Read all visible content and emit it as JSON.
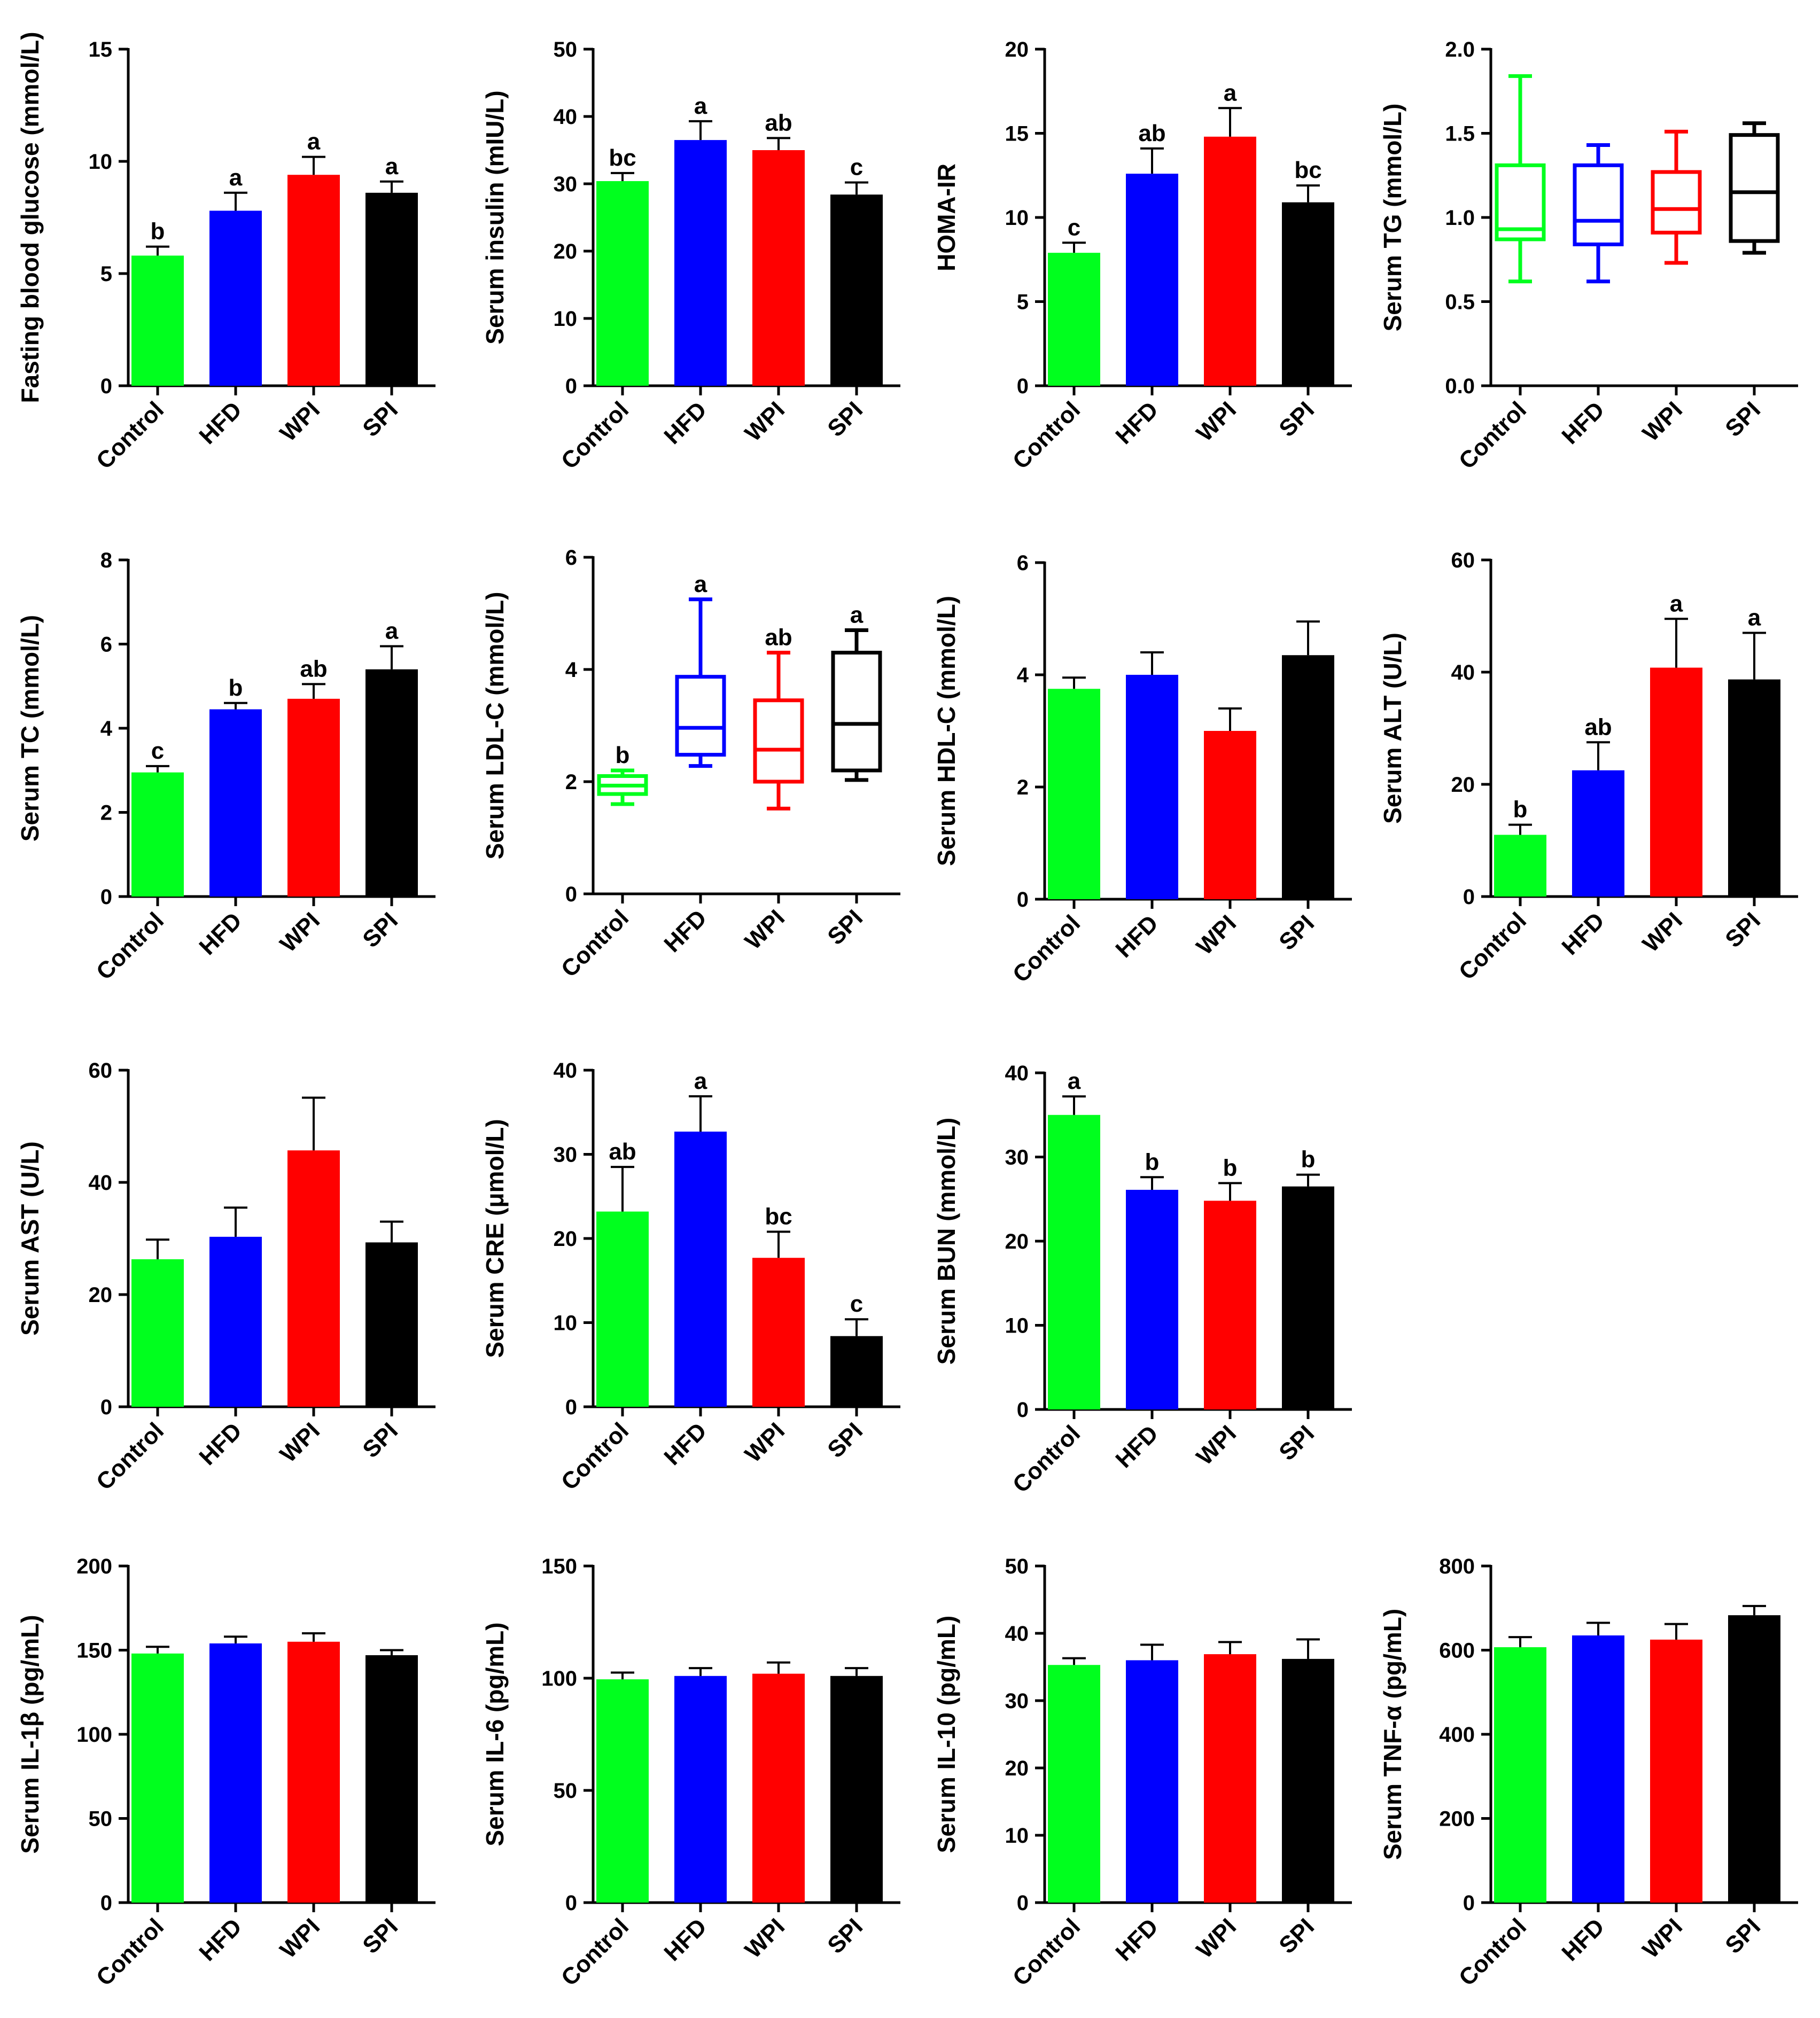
{
  "categories": [
    "Control",
    "HFD",
    "WPI",
    "SPI"
  ],
  "colors": [
    "#00ff1e",
    "#0000ff",
    "#ff0000",
    "#000000"
  ],
  "chart_data": [
    {
      "id": "glucose",
      "type": "bar",
      "ylabel": "Fasting blood glucose (mmol/L)",
      "ylim": [
        0,
        15
      ],
      "yticks": [
        0,
        5,
        10,
        15
      ],
      "values": [
        5.8,
        7.8,
        9.4,
        8.6
      ],
      "errors": [
        0.4,
        0.8,
        0.8,
        0.5
      ],
      "letters": [
        "b",
        "a",
        "a",
        "a"
      ]
    },
    {
      "id": "insulin",
      "type": "bar",
      "ylabel": "Serum insulin (mIU/L)",
      "ylim": [
        0,
        50
      ],
      "yticks": [
        0,
        10,
        20,
        30,
        40,
        50
      ],
      "values": [
        30.4,
        36.5,
        35.0,
        28.4
      ],
      "errors": [
        1.2,
        2.8,
        1.8,
        1.8
      ],
      "letters": [
        "bc",
        "a",
        "ab",
        "c"
      ]
    },
    {
      "id": "homa",
      "type": "bar",
      "ylabel": "HOMA-IR",
      "ylim": [
        0,
        20
      ],
      "yticks": [
        0,
        5,
        10,
        15,
        20
      ],
      "values": [
        7.9,
        12.6,
        14.8,
        10.9
      ],
      "errors": [
        0.6,
        1.5,
        1.7,
        1.0
      ],
      "letters": [
        "c",
        "ab",
        "a",
        "bc"
      ]
    },
    {
      "id": "tg",
      "type": "box",
      "ylabel": "Serum TG (mmol/L)",
      "ylim": [
        0,
        2
      ],
      "yticks": [
        0.0,
        0.5,
        1.0,
        1.5,
        2.0
      ],
      "decimals": 1,
      "boxes": [
        {
          "min": 0.62,
          "q1": 0.87,
          "median": 0.93,
          "q3": 1.31,
          "max": 1.84
        },
        {
          "min": 0.62,
          "q1": 0.84,
          "median": 0.98,
          "q3": 1.31,
          "max": 1.43
        },
        {
          "min": 0.73,
          "q1": 0.91,
          "median": 1.05,
          "q3": 1.27,
          "max": 1.51
        },
        {
          "min": 0.79,
          "q1": 0.86,
          "median": 1.15,
          "q3": 1.49,
          "max": 1.56
        }
      ],
      "letters": [
        "",
        "",
        "",
        ""
      ]
    },
    {
      "id": "tc",
      "type": "bar",
      "ylabel": "Serum TC (mmol/L)",
      "ylim": [
        0,
        8
      ],
      "yticks": [
        0,
        2,
        4,
        6,
        8
      ],
      "values": [
        2.95,
        4.45,
        4.7,
        5.4
      ],
      "errors": [
        0.15,
        0.15,
        0.35,
        0.55
      ],
      "letters": [
        "c",
        "b",
        "ab",
        "a"
      ]
    },
    {
      "id": "ldl",
      "type": "box",
      "ylabel": "Serum LDL-C (mmol/L)",
      "ylim": [
        0,
        6
      ],
      "yticks": [
        0,
        2,
        4,
        6
      ],
      "boxes": [
        {
          "min": 1.6,
          "q1": 1.78,
          "median": 1.93,
          "q3": 2.1,
          "max": 2.2
        },
        {
          "min": 2.28,
          "q1": 2.48,
          "median": 2.96,
          "q3": 3.87,
          "max": 5.25
        },
        {
          "min": 1.52,
          "q1": 2.0,
          "median": 2.57,
          "q3": 3.45,
          "max": 4.3
        },
        {
          "min": 2.03,
          "q1": 2.2,
          "median": 3.03,
          "q3": 4.3,
          "max": 4.7
        }
      ],
      "letters": [
        "b",
        "a",
        "ab",
        "a"
      ]
    },
    {
      "id": "hdl",
      "type": "bar",
      "ylabel": "Serum HDL-C (mmol/L)",
      "ylim": [
        0,
        6
      ],
      "yticks": [
        0,
        2,
        4,
        6
      ],
      "values": [
        3.75,
        4.0,
        3.0,
        4.35
      ],
      "errors": [
        0.2,
        0.4,
        0.4,
        0.6
      ],
      "letters": [
        "",
        "",
        "",
        ""
      ]
    },
    {
      "id": "alt",
      "type": "bar",
      "ylabel": "Serum ALT (U/L)",
      "ylim": [
        0,
        60
      ],
      "yticks": [
        0,
        20,
        40,
        60
      ],
      "values": [
        11.0,
        22.5,
        40.8,
        38.7
      ],
      "errors": [
        1.8,
        5.0,
        8.7,
        8.3
      ],
      "letters": [
        "b",
        "ab",
        "a",
        "a"
      ]
    },
    {
      "id": "ast",
      "type": "bar",
      "ylabel": "Serum AST (U/L)",
      "ylim": [
        0,
        60
      ],
      "yticks": [
        0,
        20,
        40,
        60
      ],
      "values": [
        26.3,
        30.3,
        45.7,
        29.3
      ],
      "errors": [
        3.5,
        5.2,
        9.4,
        3.7
      ],
      "letters": [
        "",
        "",
        "",
        ""
      ]
    },
    {
      "id": "cre",
      "type": "bar",
      "ylabel": "Serum CRE (μmol/L)",
      "ylim": [
        0,
        40
      ],
      "yticks": [
        0,
        10,
        20,
        30,
        40
      ],
      "values": [
        23.2,
        32.7,
        17.7,
        8.4
      ],
      "errors": [
        5.3,
        4.2,
        3.1,
        2.0
      ],
      "letters": [
        "ab",
        "a",
        "bc",
        "c"
      ]
    },
    {
      "id": "bun",
      "type": "bar",
      "ylabel": "Serum BUN (mmol/L)",
      "ylim": [
        0,
        40
      ],
      "yticks": [
        0,
        10,
        20,
        30,
        40
      ],
      "values": [
        35.0,
        26.1,
        24.8,
        26.5
      ],
      "errors": [
        2.2,
        1.5,
        2.1,
        1.4
      ],
      "letters": [
        "a",
        "b",
        "b",
        "b"
      ]
    },
    {
      "id": "il1b",
      "type": "bar",
      "ylabel": "Serum IL-1β (pg/mL)",
      "ylim": [
        0,
        200
      ],
      "yticks": [
        0,
        50,
        100,
        150,
        200
      ],
      "values": [
        148,
        154,
        155,
        147
      ],
      "errors": [
        4,
        4,
        5,
        3
      ],
      "letters": [
        "",
        "",
        "",
        ""
      ]
    },
    {
      "id": "il6",
      "type": "bar",
      "ylabel": "Serum IL-6 (pg/mL)",
      "ylim": [
        0,
        150
      ],
      "yticks": [
        0,
        50,
        100,
        150
      ],
      "values": [
        99.5,
        101,
        102,
        101
      ],
      "errors": [
        3,
        3.5,
        5,
        3.5
      ],
      "letters": [
        "",
        "",
        "",
        ""
      ]
    },
    {
      "id": "il10",
      "type": "bar",
      "ylabel": "Serum IL-10 (pg/mL)",
      "ylim": [
        0,
        50
      ],
      "yticks": [
        0,
        10,
        20,
        30,
        40,
        50
      ],
      "values": [
        35.3,
        36.0,
        36.9,
        36.2
      ],
      "errors": [
        1.0,
        2.3,
        1.8,
        2.9
      ],
      "letters": [
        "",
        "",
        "",
        ""
      ]
    },
    {
      "id": "tnf",
      "type": "bar",
      "ylabel": "Serum TNF-α (pg/mL)",
      "ylim": [
        0,
        800
      ],
      "yticks": [
        0,
        200,
        400,
        600,
        800
      ],
      "values": [
        607,
        635,
        625,
        683
      ],
      "errors": [
        24,
        30,
        37,
        22
      ],
      "letters": [
        "",
        "",
        "",
        ""
      ]
    }
  ]
}
